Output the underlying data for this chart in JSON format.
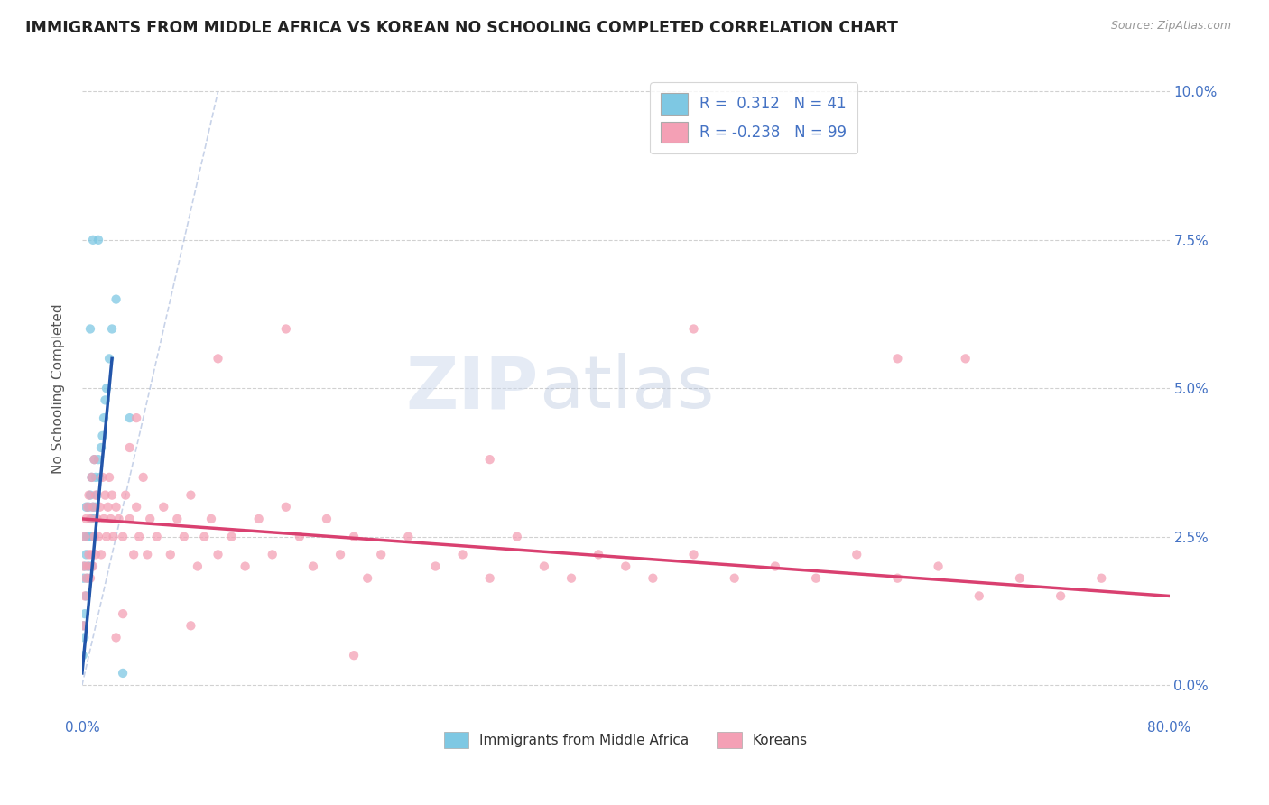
{
  "title": "IMMIGRANTS FROM MIDDLE AFRICA VS KOREAN NO SCHOOLING COMPLETED CORRELATION CHART",
  "source": "Source: ZipAtlas.com",
  "ylabel": "No Schooling Completed",
  "xlim": [
    0.0,
    0.8
  ],
  "ylim": [
    -0.005,
    0.105
  ],
  "xticks": [
    0.0,
    0.1,
    0.2,
    0.3,
    0.4,
    0.5,
    0.6,
    0.7,
    0.8
  ],
  "yticks": [
    0.0,
    0.025,
    0.05,
    0.075,
    0.1
  ],
  "yticklabels": [
    "0.0%",
    "2.5%",
    "5.0%",
    "7.5%",
    "10.0%"
  ],
  "blue_color": "#7ec8e3",
  "pink_color": "#f4a0b5",
  "blue_line_color": "#2255aa",
  "pink_line_color": "#d94070",
  "legend_r_blue": "0.312",
  "legend_n_blue": "41",
  "legend_r_pink": "-0.238",
  "legend_n_pink": "99",
  "legend_label_blue": "Immigrants from Middle Africa",
  "legend_label_pink": "Koreans",
  "tick_color": "#4472c4",
  "grid_color": "#cccccc",
  "title_color": "#222222",
  "blue_scatter_x": [
    0.0005,
    0.001,
    0.001,
    0.0015,
    0.002,
    0.002,
    0.002,
    0.003,
    0.003,
    0.003,
    0.004,
    0.004,
    0.005,
    0.005,
    0.006,
    0.006,
    0.007,
    0.007,
    0.007,
    0.008,
    0.008,
    0.009,
    0.009,
    0.01,
    0.01,
    0.011,
    0.012,
    0.013,
    0.014,
    0.015,
    0.016,
    0.017,
    0.018,
    0.02,
    0.022,
    0.025,
    0.012,
    0.008,
    0.006,
    0.035,
    0.03
  ],
  "blue_scatter_y": [
    0.005,
    0.01,
    0.018,
    0.008,
    0.012,
    0.02,
    0.025,
    0.015,
    0.022,
    0.03,
    0.018,
    0.025,
    0.02,
    0.03,
    0.025,
    0.032,
    0.02,
    0.028,
    0.035,
    0.025,
    0.03,
    0.028,
    0.038,
    0.03,
    0.035,
    0.032,
    0.038,
    0.035,
    0.04,
    0.042,
    0.045,
    0.048,
    0.05,
    0.055,
    0.06,
    0.065,
    0.075,
    0.075,
    0.06,
    0.045,
    0.002
  ],
  "pink_scatter_x": [
    0.001,
    0.001,
    0.002,
    0.002,
    0.003,
    0.003,
    0.004,
    0.004,
    0.005,
    0.005,
    0.006,
    0.006,
    0.007,
    0.007,
    0.008,
    0.008,
    0.009,
    0.009,
    0.01,
    0.01,
    0.011,
    0.012,
    0.013,
    0.014,
    0.015,
    0.016,
    0.017,
    0.018,
    0.019,
    0.02,
    0.021,
    0.022,
    0.023,
    0.025,
    0.027,
    0.03,
    0.032,
    0.035,
    0.038,
    0.04,
    0.042,
    0.045,
    0.048,
    0.05,
    0.055,
    0.06,
    0.065,
    0.07,
    0.075,
    0.08,
    0.085,
    0.09,
    0.095,
    0.1,
    0.11,
    0.12,
    0.13,
    0.14,
    0.15,
    0.16,
    0.17,
    0.18,
    0.19,
    0.2,
    0.21,
    0.22,
    0.24,
    0.26,
    0.28,
    0.3,
    0.32,
    0.34,
    0.36,
    0.38,
    0.4,
    0.42,
    0.45,
    0.48,
    0.51,
    0.54,
    0.57,
    0.6,
    0.63,
    0.66,
    0.69,
    0.72,
    0.75,
    0.035,
    0.04,
    0.1,
    0.15,
    0.3,
    0.45,
    0.6,
    0.65,
    0.025,
    0.03,
    0.08,
    0.2
  ],
  "pink_scatter_y": [
    0.01,
    0.02,
    0.015,
    0.025,
    0.018,
    0.028,
    0.02,
    0.03,
    0.022,
    0.032,
    0.018,
    0.028,
    0.022,
    0.035,
    0.02,
    0.03,
    0.025,
    0.038,
    0.022,
    0.032,
    0.028,
    0.025,
    0.03,
    0.022,
    0.035,
    0.028,
    0.032,
    0.025,
    0.03,
    0.035,
    0.028,
    0.032,
    0.025,
    0.03,
    0.028,
    0.025,
    0.032,
    0.028,
    0.022,
    0.03,
    0.025,
    0.035,
    0.022,
    0.028,
    0.025,
    0.03,
    0.022,
    0.028,
    0.025,
    0.032,
    0.02,
    0.025,
    0.028,
    0.022,
    0.025,
    0.02,
    0.028,
    0.022,
    0.03,
    0.025,
    0.02,
    0.028,
    0.022,
    0.025,
    0.018,
    0.022,
    0.025,
    0.02,
    0.022,
    0.018,
    0.025,
    0.02,
    0.018,
    0.022,
    0.02,
    0.018,
    0.022,
    0.018,
    0.02,
    0.018,
    0.022,
    0.018,
    0.02,
    0.015,
    0.018,
    0.015,
    0.018,
    0.04,
    0.045,
    0.055,
    0.06,
    0.038,
    0.06,
    0.055,
    0.055,
    0.008,
    0.012,
    0.01,
    0.005
  ],
  "blue_trend_x": [
    0.0,
    0.022
  ],
  "blue_trend_y": [
    0.002,
    0.055
  ],
  "pink_trend_x": [
    0.0,
    0.8
  ],
  "pink_trend_y": [
    0.028,
    0.015
  ],
  "ref_line_x": [
    0.0,
    0.1
  ],
  "ref_line_y": [
    0.0,
    0.1
  ]
}
